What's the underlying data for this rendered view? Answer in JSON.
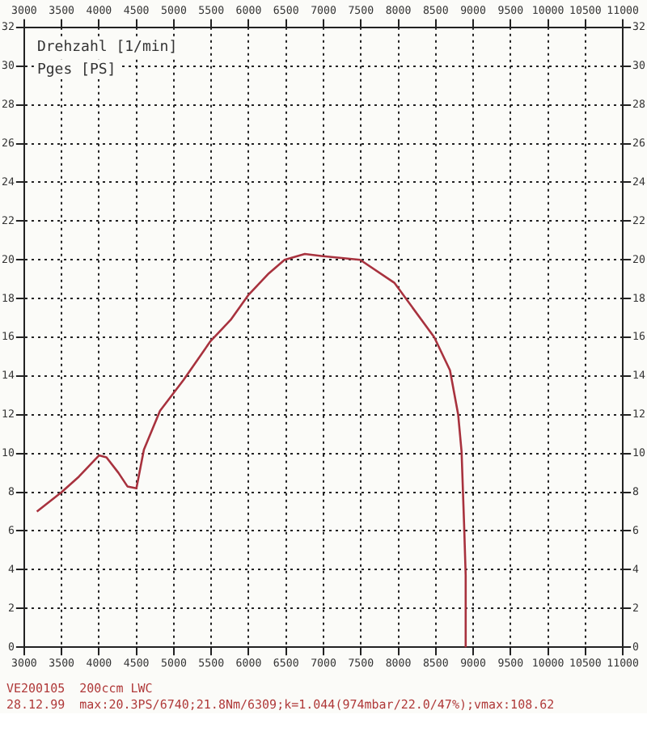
{
  "chart_data": {
    "type": "line",
    "xlabel": "Drehzahl [1/min]",
    "ylabel": "Pges [PS]",
    "x": [
      3170,
      3500,
      3730,
      4000,
      4100,
      4260,
      4380,
      4500,
      4600,
      4815,
      5130,
      5490,
      5760,
      6000,
      6270,
      6480,
      6750,
      6970,
      7490,
      7950,
      8480,
      8690,
      8800,
      8845,
      8880,
      8900,
      8900
    ],
    "series": [
      {
        "color": "#a8323e",
        "values": [
          7.0,
          8.0,
          8.8,
          9.9,
          9.8,
          9.0,
          8.3,
          8.2,
          10.2,
          12.2,
          13.8,
          15.8,
          16.9,
          18.2,
          19.3,
          20.0,
          20.3,
          20.2,
          20.0,
          18.8,
          16.0,
          14.3,
          12.0,
          10.1,
          6.2,
          3.7,
          0
        ]
      }
    ],
    "xlim": [
      3000,
      11000
    ],
    "xticks": [
      3000,
      3500,
      4000,
      4500,
      5000,
      5500,
      6000,
      6500,
      7000,
      7500,
      8000,
      8500,
      9000,
      9500,
      10000,
      10500,
      11000
    ],
    "x2lim": [
      3000,
      11000
    ],
    "x2ticks": [
      3000,
      3500,
      4000,
      4500,
      5000,
      5500,
      6000,
      6500,
      7000,
      7500,
      8000,
      8500,
      9000,
      9500,
      10000,
      10500,
      11000
    ],
    "ylim": [
      0,
      32
    ],
    "yticks": [
      0,
      2,
      4,
      6,
      8,
      10,
      12,
      14,
      16,
      18,
      20,
      22,
      24,
      26,
      28,
      30,
      32
    ],
    "y2lim": [
      0,
      32
    ],
    "y2ticks": [
      0,
      2,
      4,
      6,
      8,
      10,
      12,
      14,
      16,
      18,
      20,
      22,
      24,
      26,
      28,
      30,
      32
    ],
    "grid": true,
    "line_style": "solid",
    "marker": "none",
    "annotations": [
      "VE200105  200ccm LWC",
      "28.12.99  max:20.3PS/6740;21.8Nm/6309;k=1.044(974mbar/22.0/47%);vmax:108.62"
    ]
  }
}
